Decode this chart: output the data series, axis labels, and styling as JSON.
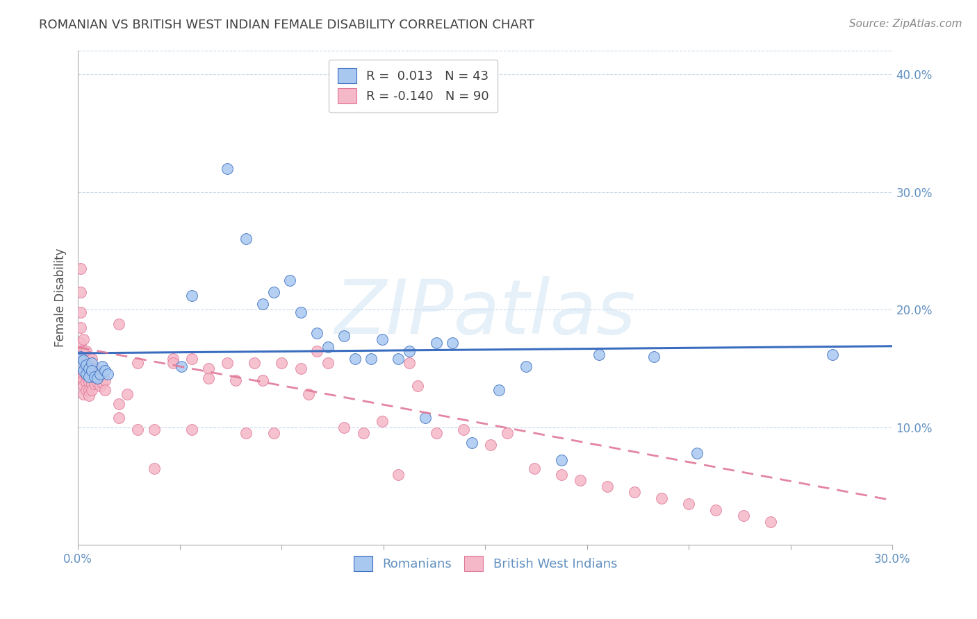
{
  "title": "ROMANIAN VS BRITISH WEST INDIAN FEMALE DISABILITY CORRELATION CHART",
  "source": "Source: ZipAtlas.com",
  "ylabel": "Female Disability",
  "watermark": "ZIPatlas",
  "xlim": [
    0.0,
    0.3
  ],
  "ylim": [
    0.0,
    0.42
  ],
  "yticks": [
    0.1,
    0.2,
    0.3,
    0.4
  ],
  "ytick_labels": [
    "10.0%",
    "20.0%",
    "30.0%",
    "40.0%"
  ],
  "xtick_positions": [
    0.0,
    0.0375,
    0.075,
    0.1125,
    0.15,
    0.1875,
    0.225,
    0.2625,
    0.3
  ],
  "xtick_labels_show": [
    "0.0%",
    "",
    "",
    "",
    "",
    "",
    "",
    "",
    "30.0%"
  ],
  "legend_r1": "R =  0.013",
  "legend_n1": "N = 43",
  "legend_r2": "R = -0.140",
  "legend_n2": "N = 90",
  "color_romanian": "#a8c8f0",
  "color_bwi": "#f5b8c8",
  "color_line_romanian": "#3a6dbf",
  "color_line_bwi": "#e07898",
  "title_color": "#404040",
  "tick_color": "#6090c0",
  "grid_color": "#c8d8e8",
  "background_color": "#ffffff",
  "rom_trend_x": [
    0.0,
    0.3
  ],
  "rom_trend_y": [
    0.163,
    0.169
  ],
  "bwi_trend_x": [
    0.0,
    0.3
  ],
  "bwi_trend_y": [
    0.168,
    0.038
  ],
  "romanians_x": [
    0.001,
    0.001,
    0.002,
    0.002,
    0.003,
    0.003,
    0.004,
    0.004,
    0.005,
    0.005,
    0.006,
    0.007,
    0.008,
    0.009,
    0.01,
    0.011,
    0.038,
    0.042,
    0.055,
    0.062,
    0.068,
    0.072,
    0.078,
    0.082,
    0.088,
    0.092,
    0.098,
    0.102,
    0.108,
    0.112,
    0.118,
    0.122,
    0.128,
    0.132,
    0.138,
    0.145,
    0.155,
    0.165,
    0.178,
    0.192,
    0.212,
    0.228,
    0.278
  ],
  "romanians_y": [
    0.16,
    0.152,
    0.157,
    0.148,
    0.153,
    0.145,
    0.15,
    0.143,
    0.155,
    0.148,
    0.143,
    0.142,
    0.145,
    0.152,
    0.148,
    0.145,
    0.152,
    0.212,
    0.32,
    0.26,
    0.205,
    0.215,
    0.225,
    0.198,
    0.18,
    0.168,
    0.178,
    0.158,
    0.158,
    0.175,
    0.158,
    0.165,
    0.108,
    0.172,
    0.172,
    0.087,
    0.132,
    0.152,
    0.072,
    0.162,
    0.16,
    0.078,
    0.162
  ],
  "bwi_x": [
    0.001,
    0.001,
    0.001,
    0.001,
    0.001,
    0.001,
    0.001,
    0.001,
    0.001,
    0.001,
    0.002,
    0.002,
    0.002,
    0.002,
    0.002,
    0.002,
    0.002,
    0.002,
    0.003,
    0.003,
    0.003,
    0.003,
    0.003,
    0.003,
    0.004,
    0.004,
    0.004,
    0.004,
    0.004,
    0.004,
    0.005,
    0.005,
    0.005,
    0.005,
    0.005,
    0.006,
    0.006,
    0.006,
    0.007,
    0.007,
    0.008,
    0.008,
    0.009,
    0.01,
    0.01,
    0.015,
    0.015,
    0.018,
    0.022,
    0.028,
    0.035,
    0.042,
    0.048,
    0.055,
    0.058,
    0.062,
    0.065,
    0.068,
    0.072,
    0.075,
    0.082,
    0.085,
    0.088,
    0.092,
    0.098,
    0.105,
    0.112,
    0.118,
    0.122,
    0.125,
    0.132,
    0.142,
    0.152,
    0.158,
    0.168,
    0.178,
    0.185,
    0.195,
    0.205,
    0.215,
    0.225,
    0.235,
    0.245,
    0.255,
    0.015,
    0.022,
    0.028,
    0.035,
    0.042,
    0.048
  ],
  "bwi_y": [
    0.235,
    0.215,
    0.198,
    0.185,
    0.172,
    0.165,
    0.158,
    0.152,
    0.148,
    0.143,
    0.175,
    0.165,
    0.158,
    0.15,
    0.145,
    0.14,
    0.135,
    0.128,
    0.165,
    0.158,
    0.15,
    0.143,
    0.138,
    0.132,
    0.16,
    0.152,
    0.145,
    0.138,
    0.132,
    0.127,
    0.158,
    0.15,
    0.143,
    0.137,
    0.132,
    0.15,
    0.143,
    0.137,
    0.145,
    0.138,
    0.142,
    0.135,
    0.138,
    0.14,
    0.132,
    0.12,
    0.108,
    0.128,
    0.098,
    0.065,
    0.158,
    0.158,
    0.15,
    0.155,
    0.14,
    0.095,
    0.155,
    0.14,
    0.095,
    0.155,
    0.15,
    0.128,
    0.165,
    0.155,
    0.1,
    0.095,
    0.105,
    0.06,
    0.155,
    0.135,
    0.095,
    0.098,
    0.085,
    0.095,
    0.065,
    0.06,
    0.055,
    0.05,
    0.045,
    0.04,
    0.035,
    0.03,
    0.025,
    0.02,
    0.188,
    0.155,
    0.098,
    0.155,
    0.098,
    0.142
  ]
}
